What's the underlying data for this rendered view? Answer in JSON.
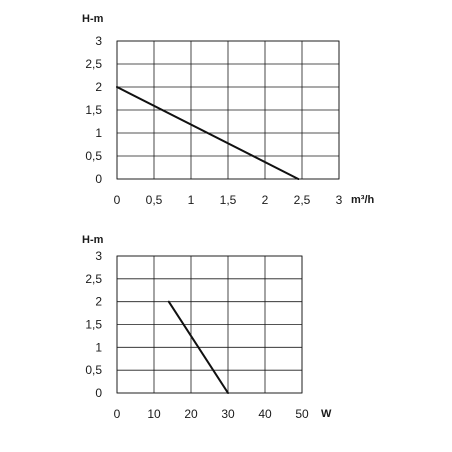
{
  "chart_data": [
    {
      "type": "line",
      "xlabel": "m³/h",
      "ylabel": "H-m",
      "xlim": [
        0,
        3
      ],
      "ylim": [
        0,
        3
      ],
      "x_ticks": [
        "0",
        "0,5",
        "1",
        "1,5",
        "2",
        "2,5",
        "3"
      ],
      "y_ticks": [
        "0",
        "0,5",
        "1",
        "1,5",
        "2",
        "2,5",
        "3"
      ],
      "grid": true,
      "series": [
        {
          "x": [
            0,
            2.45
          ],
          "y": [
            2.0,
            0.0
          ]
        }
      ]
    },
    {
      "type": "line",
      "xlabel": "W",
      "ylabel": "H-m",
      "xlim": [
        0,
        50
      ],
      "ylim": [
        0,
        3
      ],
      "x_ticks": [
        "0",
        "10",
        "20",
        "30",
        "40",
        "50"
      ],
      "y_ticks": [
        "0",
        "0,5",
        "1",
        "1,5",
        "2",
        "2,5",
        "3"
      ],
      "grid": true,
      "series": [
        {
          "x": [
            14,
            30
          ],
          "y": [
            2.0,
            0.0
          ]
        }
      ]
    }
  ]
}
